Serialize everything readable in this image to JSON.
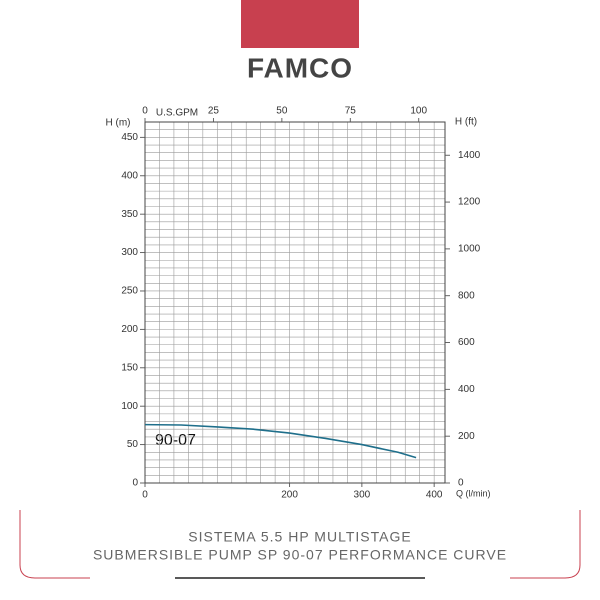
{
  "brand": "FAMCO",
  "chart_data": {
    "type": "line",
    "caption": [
      "SISTEMA 5.5 HP MULTISTAGE",
      "SUBMERSIBLE PUMP SP 90-07 PERFORMANCE CURVE"
    ],
    "y_label": "H (m)",
    "y2_label": "H (ft)",
    "x_label": "Q (l/min)",
    "x2_label": "U.S.GPM",
    "curve_label": "90-07",
    "x": [
      0,
      50,
      100,
      150,
      200,
      250,
      300,
      350,
      375
    ],
    "series": [
      {
        "name": "90-07",
        "color": "#1f6f8b",
        "values": [
          76,
          75.5,
          73,
          70,
          65,
          58,
          50,
          40,
          33
        ]
      }
    ],
    "xlim": [
      0,
      415
    ],
    "xticks": [
      0,
      200,
      300,
      400
    ],
    "x2lim": [
      0,
      109.6
    ],
    "x2ticks": [
      0,
      25,
      50,
      75,
      100
    ],
    "ylim": [
      0,
      470
    ],
    "yticks": [
      0,
      50,
      100,
      150,
      200,
      250,
      300,
      350,
      400,
      450
    ],
    "y2lim": [
      0,
      1542
    ],
    "y2ticks": [
      0,
      200,
      400,
      600,
      800,
      1000,
      1200,
      1400
    ],
    "grid": true,
    "xminor": [
      0,
      20,
      40,
      60,
      80,
      100,
      120,
      140,
      160,
      180,
      200,
      220,
      240,
      260,
      280,
      300,
      320,
      340,
      360,
      380,
      400
    ],
    "yminor": [
      0,
      10,
      20,
      30,
      40,
      50,
      60,
      70,
      80,
      90,
      100,
      110,
      120,
      130,
      140,
      150,
      160,
      170,
      180,
      190,
      200,
      210,
      220,
      230,
      240,
      250,
      260,
      270,
      280,
      290,
      300,
      310,
      320,
      330,
      340,
      350,
      360,
      370,
      380,
      390,
      400,
      410,
      420,
      430,
      440,
      450,
      460
    ]
  }
}
